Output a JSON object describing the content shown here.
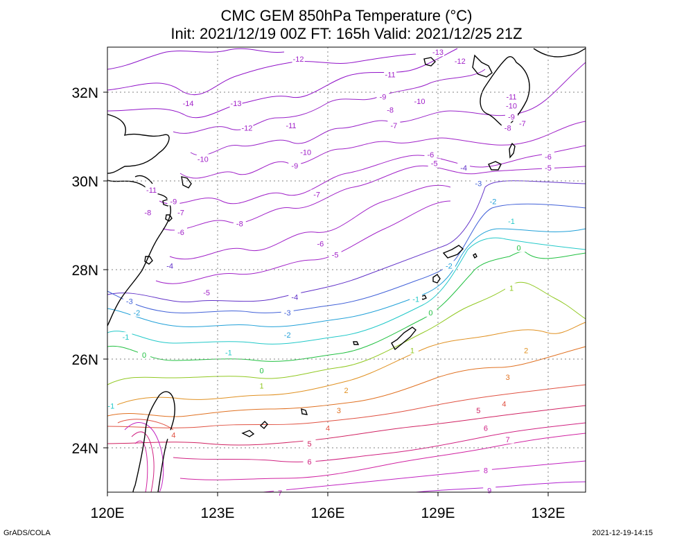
{
  "title": {
    "line1": "CMC GEM 850hPa Temperature (°C)",
    "line2": "Init: 2021/12/19 00Z  FT: 165h  Valid: 2021/12/25 21Z"
  },
  "footer": {
    "left": "GrADS/COLA",
    "right": "2021-12-19-14:15"
  },
  "axes": {
    "x_ticks": [
      "120E",
      "123E",
      "126E",
      "129E",
      "132E"
    ],
    "y_ticks": [
      "32N",
      "30N",
      "28N",
      "26N",
      "24N"
    ]
  },
  "contour_labels": [
    {
      "text": "-12",
      "color": "#a020c8",
      "lon": 125.2,
      "lat": 32.75
    },
    {
      "text": "-13",
      "color": "#a020c8",
      "lon": 129.0,
      "lat": 32.9
    },
    {
      "text": "-12",
      "color": "#a020c8",
      "lon": 129.6,
      "lat": 32.7
    },
    {
      "text": "-11",
      "color": "#a020c8",
      "lon": 127.7,
      "lat": 32.4
    },
    {
      "text": "-14",
      "color": "#a020c8",
      "lon": 122.2,
      "lat": 31.75
    },
    {
      "text": "-13",
      "color": "#a020c8",
      "lon": 123.5,
      "lat": 31.75
    },
    {
      "text": "-10",
      "color": "#a020c8",
      "lon": 128.5,
      "lat": 31.8
    },
    {
      "text": "-9",
      "color": "#a020c8",
      "lon": 127.5,
      "lat": 31.9
    },
    {
      "text": "-8",
      "color": "#a020c8",
      "lon": 127.7,
      "lat": 31.6
    },
    {
      "text": "-7",
      "color": "#a020c8",
      "lon": 127.8,
      "lat": 31.25
    },
    {
      "text": "-12",
      "color": "#a020c8",
      "lon": 123.8,
      "lat": 31.2
    },
    {
      "text": "-11",
      "color": "#a020c8",
      "lon": 125.0,
      "lat": 31.25
    },
    {
      "text": "-11",
      "color": "#a020c8",
      "lon": 131.0,
      "lat": 31.9
    },
    {
      "text": "-10",
      "color": "#a020c8",
      "lon": 131.0,
      "lat": 31.7
    },
    {
      "text": "-9",
      "color": "#a020c8",
      "lon": 131.0,
      "lat": 31.45
    },
    {
      "text": "-8",
      "color": "#a020c8",
      "lon": 130.9,
      "lat": 31.2
    },
    {
      "text": "-7",
      "color": "#a020c8",
      "lon": 131.3,
      "lat": 31.3
    },
    {
      "text": "-10",
      "color": "#a020c8",
      "lon": 125.4,
      "lat": 30.65
    },
    {
      "text": "-10",
      "color": "#a020c8",
      "lon": 122.6,
      "lat": 30.5
    },
    {
      "text": "-9",
      "color": "#a020c8",
      "lon": 125.1,
      "lat": 30.35
    },
    {
      "text": "-6",
      "color": "#a020c8",
      "lon": 128.8,
      "lat": 30.6
    },
    {
      "text": "-5",
      "color": "#a020c8",
      "lon": 128.9,
      "lat": 30.4
    },
    {
      "text": "-4",
      "color": "#6030c8",
      "lon": 129.7,
      "lat": 30.3
    },
    {
      "text": "-6",
      "color": "#a020c8",
      "lon": 132.0,
      "lat": 30.55
    },
    {
      "text": "-5",
      "color": "#a020c8",
      "lon": 132.0,
      "lat": 30.3
    },
    {
      "text": "-11",
      "color": "#a020c8",
      "lon": 121.2,
      "lat": 29.8
    },
    {
      "text": "-9",
      "color": "#a020c8",
      "lon": 121.8,
      "lat": 29.55
    },
    {
      "text": "-8",
      "color": "#a020c8",
      "lon": 121.1,
      "lat": 29.3
    },
    {
      "text": "-7",
      "color": "#a020c8",
      "lon": 122.0,
      "lat": 29.3
    },
    {
      "text": "-7",
      "color": "#a020c8",
      "lon": 125.7,
      "lat": 29.7
    },
    {
      "text": "-8",
      "color": "#a020c8",
      "lon": 123.6,
      "lat": 29.05
    },
    {
      "text": "-6",
      "color": "#a020c8",
      "lon": 122.0,
      "lat": 28.85
    },
    {
      "text": "-6",
      "color": "#a020c8",
      "lon": 125.8,
      "lat": 28.6
    },
    {
      "text": "-5",
      "color": "#a020c8",
      "lon": 126.2,
      "lat": 28.35
    },
    {
      "text": "-3",
      "color": "#4060d8",
      "lon": 130.1,
      "lat": 29.95
    },
    {
      "text": "-2",
      "color": "#20a0d8",
      "lon": 130.5,
      "lat": 29.55
    },
    {
      "text": "-1",
      "color": "#20c8c8",
      "lon": 131.0,
      "lat": 29.1
    },
    {
      "text": "0",
      "color": "#20c040",
      "lon": 131.2,
      "lat": 28.5
    },
    {
      "text": "-2",
      "color": "#20a0d8",
      "lon": 129.3,
      "lat": 28.1
    },
    {
      "text": "-4",
      "color": "#6030c8",
      "lon": 121.7,
      "lat": 28.1
    },
    {
      "text": "-5",
      "color": "#a020c8",
      "lon": 122.7,
      "lat": 27.5
    },
    {
      "text": "-4",
      "color": "#6030c8",
      "lon": 125.1,
      "lat": 27.4
    },
    {
      "text": "-3",
      "color": "#4060d8",
      "lon": 120.6,
      "lat": 27.3
    },
    {
      "text": "-2",
      "color": "#20a0d8",
      "lon": 120.8,
      "lat": 27.05
    },
    {
      "text": "-3",
      "color": "#4060d8",
      "lon": 124.9,
      "lat": 27.05
    },
    {
      "text": "-1",
      "color": "#20c8c8",
      "lon": 128.4,
      "lat": 27.35
    },
    {
      "text": "0",
      "color": "#20c040",
      "lon": 128.8,
      "lat": 27.05
    },
    {
      "text": "1",
      "color": "#90c820",
      "lon": 131.0,
      "lat": 27.6
    },
    {
      "text": "-1",
      "color": "#20c8c8",
      "lon": 120.5,
      "lat": 26.5
    },
    {
      "text": "-2",
      "color": "#20a0d8",
      "lon": 124.9,
      "lat": 26.55
    },
    {
      "text": "0",
      "color": "#20c040",
      "lon": 121.0,
      "lat": 26.1
    },
    {
      "text": "-1",
      "color": "#20c8c8",
      "lon": 123.3,
      "lat": 26.15
    },
    {
      "text": "1",
      "color": "#90c820",
      "lon": 128.3,
      "lat": 26.2
    },
    {
      "text": "2",
      "color": "#e09020",
      "lon": 131.4,
      "lat": 26.2
    },
    {
      "text": "0",
      "color": "#20c040",
      "lon": 124.2,
      "lat": 25.75
    },
    {
      "text": "3",
      "color": "#e07020",
      "lon": 130.9,
      "lat": 25.6
    },
    {
      "text": "1",
      "color": "#90c820",
      "lon": 124.2,
      "lat": 25.4
    },
    {
      "text": "2",
      "color": "#e09020",
      "lon": 126.5,
      "lat": 25.3
    },
    {
      "text": "4",
      "color": "#e05040",
      "lon": 130.8,
      "lat": 25.0
    },
    {
      "text": "3",
      "color": "#e07020",
      "lon": 126.3,
      "lat": 24.85
    },
    {
      "text": "-1",
      "color": "#20c8c8",
      "lon": 120.1,
      "lat": 24.95
    },
    {
      "text": "4",
      "color": "#e05040",
      "lon": 126.0,
      "lat": 24.45
    },
    {
      "text": "4",
      "color": "#e05040",
      "lon": 121.8,
      "lat": 24.3
    },
    {
      "text": "5",
      "color": "#d02060",
      "lon": 130.1,
      "lat": 24.85
    },
    {
      "text": "5",
      "color": "#d02060",
      "lon": 125.5,
      "lat": 24.1
    },
    {
      "text": "6",
      "color": "#d02080",
      "lon": 130.3,
      "lat": 24.45
    },
    {
      "text": "7",
      "color": "#d020a0",
      "lon": 130.9,
      "lat": 24.2
    },
    {
      "text": "6",
      "color": "#d02080",
      "lon": 125.5,
      "lat": 23.7
    },
    {
      "text": "8",
      "color": "#c020c0",
      "lon": 130.3,
      "lat": 23.5
    },
    {
      "text": "7",
      "color": "#c020c0",
      "lon": 124.7,
      "lat": 23.0
    },
    {
      "text": "9",
      "color": "#b020d0",
      "lon": 130.4,
      "lat": 23.05
    }
  ]
}
